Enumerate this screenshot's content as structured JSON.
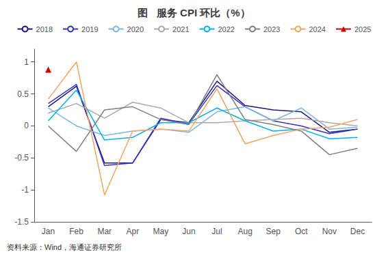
{
  "chart_data": {
    "type": "line",
    "title": "图   服务 CPI 环比（%）",
    "annotations": [
      "资料来源：Wind，海通证券研究所"
    ],
    "categories": [
      "Jan",
      "Feb",
      "Mar",
      "Apr",
      "May",
      "Jun",
      "Jul",
      "Aug",
      "Sep",
      "Oct",
      "Nov",
      "Dec"
    ],
    "series": [
      {
        "name": "2018",
        "color": "#1a1a7a",
        "values": [
          0.3,
          0.62,
          -0.58,
          -0.58,
          0.1,
          0.05,
          0.7,
          0.32,
          0.25,
          0.22,
          -0.1,
          -0.05
        ]
      },
      {
        "name": "2019",
        "color": "#3333cc",
        "values": [
          0.35,
          0.65,
          -0.62,
          -0.58,
          0.12,
          0.03,
          0.63,
          0.3,
          0.08,
          0.0,
          -0.12,
          -0.05
        ]
      },
      {
        "name": "2020",
        "color": "#7eb6e8",
        "values": [
          0.28,
          0.0,
          -0.15,
          -0.08,
          -0.05,
          -0.1,
          0.22,
          0.3,
          0.08,
          0.28,
          -0.05,
          -0.02
        ]
      },
      {
        "name": "2021",
        "color": "#aaaaaa",
        "values": [
          0.2,
          0.35,
          0.12,
          0.37,
          0.28,
          0.05,
          0.05,
          0.08,
          0.1,
          0.12,
          0.05,
          0.0
        ]
      },
      {
        "name": "2022",
        "color": "#00b0f0",
        "values": [
          0.08,
          0.56,
          -0.22,
          -0.18,
          0.05,
          0.05,
          0.28,
          0.08,
          -0.08,
          -0.05,
          -0.2,
          -0.18
        ]
      },
      {
        "name": "2023",
        "color": "#7f7f7f",
        "values": [
          0.0,
          -0.4,
          0.25,
          0.3,
          0.1,
          0.02,
          0.8,
          0.1,
          0.02,
          -0.08,
          -0.45,
          -0.35
        ]
      },
      {
        "name": "2024",
        "color": "#f4a460",
        "values": [
          0.42,
          1.0,
          -1.08,
          -0.08,
          -0.05,
          -0.08,
          0.58,
          -0.28,
          -0.15,
          -0.05,
          -0.02,
          0.1
        ]
      },
      {
        "name": "2025",
        "color": "#cc0000",
        "marker": "triangle",
        "values": [
          0.88,
          null,
          null,
          null,
          null,
          null,
          null,
          null,
          null,
          null,
          null,
          null
        ]
      }
    ],
    "ylim": [
      -1.5,
      1.2
    ],
    "yticks": [
      -1.5,
      -1.0,
      -0.5,
      0.0,
      0.5,
      1.0
    ],
    "grid": false,
    "legend": "top"
  }
}
